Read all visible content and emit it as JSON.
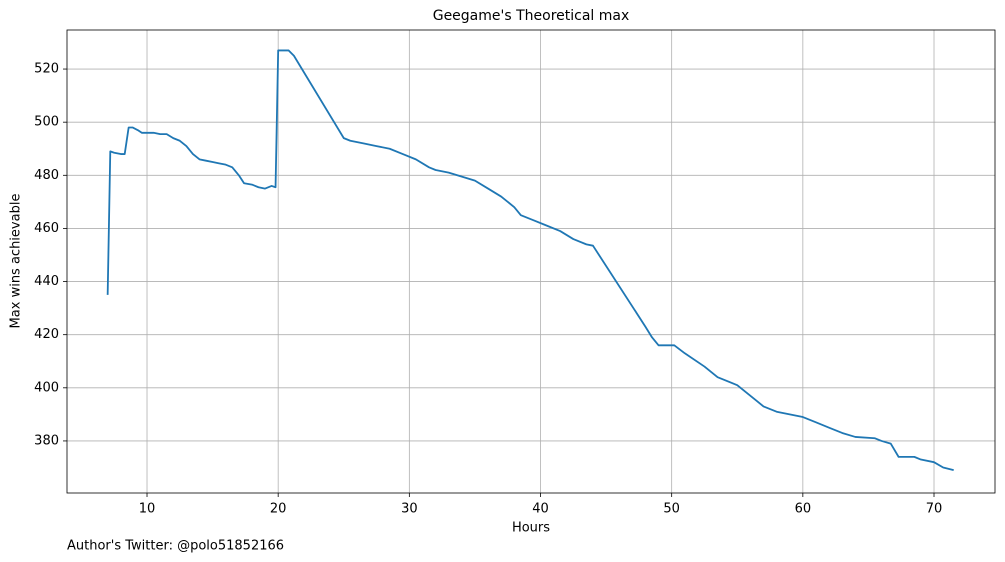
{
  "chart_data": {
    "type": "line",
    "title": "Geegame's Theoretical max",
    "xlabel": "Hours",
    "ylabel": "Max wins achievable",
    "footnote": "Author's Twitter: @polo51852166",
    "x": [
      7.0,
      7.2,
      7.5,
      8.0,
      8.3,
      8.6,
      8.9,
      9.3,
      9.6,
      10,
      10.5,
      11,
      11.5,
      12,
      12.5,
      13,
      13.5,
      14,
      14.5,
      15,
      15.5,
      16,
      16.5,
      17,
      17.4,
      18,
      18.5,
      19,
      19.5,
      19.8,
      20,
      20.8,
      21.2,
      25,
      25.5,
      26.5,
      27.5,
      28.5,
      29.5,
      30.5,
      31.5,
      32,
      33,
      34,
      35,
      36,
      37,
      38,
      38.5,
      39.5,
      40.5,
      41.5,
      42.5,
      43.5,
      44,
      48,
      48.5,
      49,
      50.2,
      51,
      52.5,
      53.5,
      55,
      56.5,
      57,
      58,
      59,
      60,
      61,
      62,
      63,
      64,
      65.5,
      66,
      66.7,
      67.3,
      68.5,
      69,
      70,
      70.7,
      71.5
    ],
    "series": [
      {
        "name": "Max wins",
        "color": "#1f77b4",
        "values": [
          435,
          489,
          488.5,
          488,
          488,
          498,
          498,
          497,
          496,
          496,
          496,
          495.5,
          495.5,
          494,
          493,
          491,
          488,
          486,
          485.5,
          485,
          484.5,
          484,
          483,
          480,
          477,
          476.5,
          475.5,
          475,
          476,
          475.5,
          527,
          527,
          525,
          494,
          493,
          492,
          491,
          490,
          488,
          486,
          483,
          482,
          481,
          479.5,
          478,
          475,
          472,
          468,
          465,
          463,
          461,
          459,
          456,
          454,
          453.5,
          423,
          419,
          416,
          416,
          413,
          408,
          404,
          401,
          395,
          393,
          391,
          390,
          389,
          387,
          385,
          383,
          381.5,
          381,
          380,
          379,
          374,
          374,
          373,
          372,
          370,
          369
        ]
      }
    ],
    "xlim": [
      3.9,
      74.65
    ],
    "ylim": [
      360.4,
      534.7
    ],
    "xticks": [
      10,
      20,
      30,
      40,
      50,
      60,
      70
    ],
    "yticks": [
      380,
      400,
      420,
      440,
      460,
      480,
      500,
      520
    ],
    "grid": true
  }
}
